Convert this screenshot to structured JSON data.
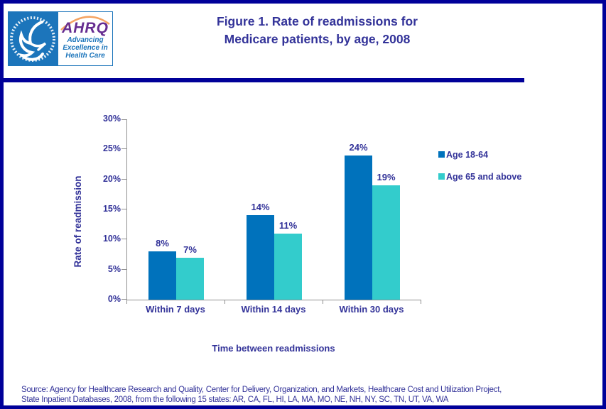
{
  "header": {
    "logo": {
      "ahrq_text": "AHRQ",
      "tagline_lines": [
        "Advancing",
        "Excellence in",
        "Health Care"
      ]
    },
    "title_lines": [
      "Figure 1. Rate of readmissions for",
      "Medicare patients, by age, 2008"
    ]
  },
  "chart_data": {
    "type": "bar",
    "title": "Figure 1. Rate of readmissions for Medicare patients, by age, 2008",
    "categories": [
      "Within 7 days",
      "Within 14 days",
      "Within 30 days"
    ],
    "series": [
      {
        "name": "Age 18-64",
        "color": "#0072BC",
        "values": [
          8,
          14,
          24
        ],
        "value_labels": [
          "8%",
          "14%",
          "24%"
        ]
      },
      {
        "name": "Age 65 and above",
        "color": "#33CCCC",
        "values": [
          7,
          11,
          19
        ],
        "value_labels": [
          "7%",
          "11%",
          "19%"
        ]
      }
    ],
    "xlabel": "Time between readmissions",
    "ylabel": "Rate of readmission",
    "ylim": [
      0,
      30
    ],
    "ytick_step": 5,
    "ytick_labels": [
      "0%",
      "5%",
      "10%",
      "15%",
      "20%",
      "25%",
      "30%"
    ],
    "grid": false,
    "legend_position": "right"
  },
  "footer": {
    "source_lines": [
      "Source: Agency for Healthcare Research and Quality, Center for Delivery, Organization, and Markets, Healthcare Cost and Utilization Project,",
      "State Inpatient Databases, 2008, from the following 15 states: AR, CA, FL, HI, LA, MA, MO, NE, NH, NY, SC, TN, UT, VA, WA"
    ]
  },
  "colors": {
    "frame_navy": "#000099",
    "text_navy": "#333399",
    "series1_blue": "#0072BC",
    "series2_teal": "#33CCCC",
    "axis_gray": "#909090",
    "logo_blue": "#1C75BB",
    "logo_purple": "#662D91",
    "logo_arc_orange": "#F5A463"
  }
}
